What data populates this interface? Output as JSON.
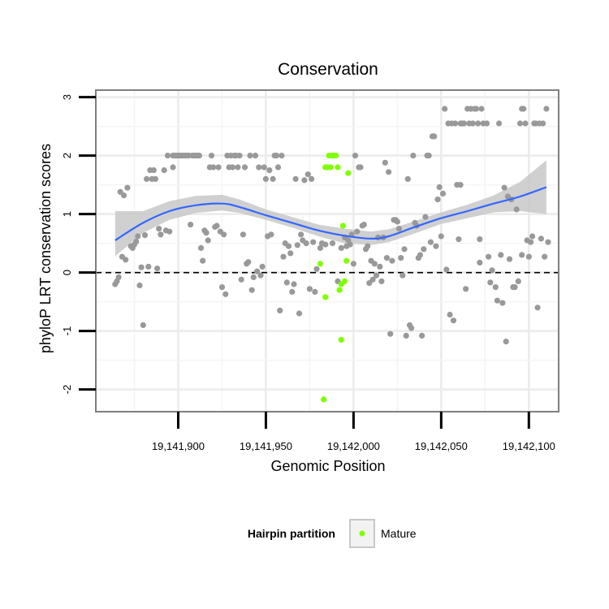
{
  "chart_data": {
    "type": "scatter",
    "title": "Conservation",
    "xlabel": "Genomic Position",
    "ylabel": "phyloP LRT conservation scores",
    "xlim": [
      19141853,
      19142117
    ],
    "ylim": [
      -2.38,
      3.12
    ],
    "x_ticks": [
      19141900,
      19141950,
      19142000,
      19142050,
      19142100
    ],
    "x_tick_labels": [
      "19,141,900",
      "19,141,950",
      "19,142,000",
      "19,142,050",
      "19,142,100"
    ],
    "y_ticks": [
      -2,
      -1,
      0,
      1,
      2,
      3
    ],
    "y_tick_labels": [
      "-2",
      "-1",
      "0",
      "1",
      "2",
      "3"
    ],
    "reference_line": {
      "y": 0,
      "style": "dashed"
    },
    "colors": {
      "background_points": "#999999",
      "mature_points": "#7fff00",
      "smooth_line": "#3366ff",
      "ribbon": "#c8c8c8",
      "grid": "#ebebeb"
    },
    "series": [
      {
        "name": "background",
        "points": [
          [
            19141864,
            -0.2
          ],
          [
            19141865,
            -0.15
          ],
          [
            19141866,
            -0.08
          ],
          [
            19141867,
            1.38
          ],
          [
            19141868,
            0.27
          ],
          [
            19141869,
            1.32
          ],
          [
            19141870,
            0.22
          ],
          [
            19141871,
            1.45
          ],
          [
            19141873,
            0.45
          ],
          [
            19141874,
            0.42
          ],
          [
            19141875,
            0.48
          ],
          [
            19141876,
            0.53
          ],
          [
            19141877,
            0.62
          ],
          [
            19141878,
            -0.22
          ],
          [
            19141879,
            0.09
          ],
          [
            19141880,
            -0.9
          ],
          [
            19141881,
            0.64
          ],
          [
            19141882,
            1.6
          ],
          [
            19141883,
            0.1
          ],
          [
            19141884,
            1.75
          ],
          [
            19141885,
            1.6
          ],
          [
            19141886,
            1.75
          ],
          [
            19141887,
            1.6
          ],
          [
            19141888,
            0.07
          ],
          [
            19141889,
            0.75
          ],
          [
            19141890,
            0.65
          ],
          [
            19141892,
            1.75
          ],
          [
            19141893,
            0.72
          ],
          [
            19141894,
            2.0
          ],
          [
            19141895,
            0.7
          ],
          [
            19141897,
            1.8
          ],
          [
            19141897,
            2.0
          ],
          [
            19141898,
            2.0
          ],
          [
            19141899,
            2.0
          ],
          [
            19141900,
            2.0
          ],
          [
            19141901,
            2.0
          ],
          [
            19141902,
            2.0
          ],
          [
            19141903,
            2.0
          ],
          [
            19141904,
            2.0
          ],
          [
            19141905,
            2.0
          ],
          [
            19141906,
            2.0
          ],
          [
            19141907,
            0.82
          ],
          [
            19141908,
            2.0
          ],
          [
            19141909,
            2.0
          ],
          [
            19141910,
            2.0
          ],
          [
            19141911,
            2.0
          ],
          [
            19141912,
            2.0
          ],
          [
            19141913,
            0.42
          ],
          [
            19141914,
            0.2
          ],
          [
            19141915,
            0.72
          ],
          [
            19141916,
            0.68
          ],
          [
            19141917,
            0.55
          ],
          [
            19141918,
            1.8
          ],
          [
            19141919,
            2.0
          ],
          [
            19141920,
            1.8
          ],
          [
            19141921,
            0.78
          ],
          [
            19141922,
            0.8
          ],
          [
            19141923,
            1.8
          ],
          [
            19141924,
            0.7
          ],
          [
            19141925,
            -0.25
          ],
          [
            19141926,
            0.65
          ],
          [
            19141927,
            -0.37
          ],
          [
            19141928,
            2.0
          ],
          [
            19141929,
            1.8
          ],
          [
            19141930,
            2.0
          ],
          [
            19141931,
            1.8
          ],
          [
            19141932,
            2.0
          ],
          [
            19141933,
            2.0
          ],
          [
            19141934,
            1.8
          ],
          [
            19141935,
            2.0
          ],
          [
            19141936,
            -0.12
          ],
          [
            19141937,
            0.65
          ],
          [
            19141938,
            1.8
          ],
          [
            19141939,
            0.15
          ],
          [
            19141940,
            0.18
          ],
          [
            19141941,
            2.0
          ],
          [
            19141942,
            -0.3
          ],
          [
            19141943,
            -0.08
          ],
          [
            19141944,
            2.0
          ],
          [
            19141945,
            0.02
          ],
          [
            19141946,
            1.8
          ],
          [
            19141947,
            -0.05
          ],
          [
            19141948,
            0.1
          ],
          [
            19141949,
            1.8
          ],
          [
            19141950,
            1.6
          ],
          [
            19141951,
            0.62
          ],
          [
            19141952,
            1.75
          ],
          [
            19141953,
            0.65
          ],
          [
            19141954,
            1.6
          ],
          [
            19141955,
            2.0
          ],
          [
            19141956,
            2.0
          ],
          [
            19141957,
            1.8
          ],
          [
            19141958,
            -0.65
          ],
          [
            19141959,
            2.0
          ],
          [
            19141960,
            0.27
          ],
          [
            19141961,
            0.5
          ],
          [
            19141962,
            -0.17
          ],
          [
            19141963,
            0.45
          ],
          [
            19141964,
            0.33
          ],
          [
            19141965,
            -0.33
          ],
          [
            19141966,
            -0.2
          ],
          [
            19141967,
            1.6
          ],
          [
            19141968,
            0.47
          ],
          [
            19141969,
            -0.7
          ],
          [
            19141970,
            0.65
          ],
          [
            19141971,
            0.55
          ],
          [
            19141972,
            1.58
          ],
          [
            19141973,
            0.5
          ],
          [
            19141974,
            1.68
          ],
          [
            19141975,
            -0.28
          ],
          [
            19141976,
            1.6
          ],
          [
            19141977,
            0.52
          ],
          [
            19141978,
            -0.33
          ],
          [
            19141979,
            0.06
          ],
          [
            19141981,
            0.42
          ],
          [
            19141982,
            0.5
          ],
          [
            19141984,
            0.48
          ],
          [
            19141988,
            0.5
          ],
          [
            19141991,
            -0.15
          ],
          [
            19141993,
            0.42
          ],
          [
            19141995,
            0.6
          ],
          [
            19141996,
            0.45
          ],
          [
            19141997,
            0.55
          ],
          [
            19141998,
            0.48
          ],
          [
            19141999,
            0.65
          ],
          [
            19142000,
            0.15
          ],
          [
            19142001,
            2.0
          ],
          [
            19142002,
            0.7
          ],
          [
            19142003,
            1.8
          ],
          [
            19142004,
            1.8
          ],
          [
            19142005,
            0.8
          ],
          [
            19142006,
            0.82
          ],
          [
            19142007,
            0.4
          ],
          [
            19142008,
            0.45
          ],
          [
            19142009,
            -0.18
          ],
          [
            19142010,
            0.2
          ],
          [
            19142011,
            -0.12
          ],
          [
            19142012,
            0.15
          ],
          [
            19142013,
            -0.05
          ],
          [
            19142014,
            0.6
          ],
          [
            19142015,
            0.1
          ],
          [
            19142016,
            -0.15
          ],
          [
            19142017,
            0.6
          ],
          [
            19142018,
            1.88
          ],
          [
            19142019,
            0.25
          ],
          [
            19142020,
            1.72
          ],
          [
            19142021,
            -1.05
          ],
          [
            19142022,
            0.2
          ],
          [
            19142023,
            0.9
          ],
          [
            19142024,
            0.9
          ],
          [
            19142025,
            0.87
          ],
          [
            19142026,
            0.75
          ],
          [
            19142027,
            0.25
          ],
          [
            19142028,
            -0.05
          ],
          [
            19142029,
            0.4
          ],
          [
            19142030,
            -1.08
          ],
          [
            19142031,
            1.6
          ],
          [
            19142032,
            -0.9
          ],
          [
            19142033,
            -0.95
          ],
          [
            19142034,
            2.0
          ],
          [
            19142035,
            0.85
          ],
          [
            19142036,
            0.8
          ],
          [
            19142037,
            0.25
          ],
          [
            19142038,
            0.3
          ],
          [
            19142039,
            -1.08
          ],
          [
            19142040,
            0.4
          ],
          [
            19142041,
            0.95
          ],
          [
            19142042,
            2.0
          ],
          [
            19142043,
            2.0
          ],
          [
            19142044,
            0.52
          ],
          [
            19142045,
            2.33
          ],
          [
            19142046,
            2.33
          ],
          [
            19142047,
            0.45
          ],
          [
            19142048,
            1.25
          ],
          [
            19142049,
            1.46
          ],
          [
            19142050,
            0.62
          ],
          [
            19142051,
            1.35
          ],
          [
            19142052,
            2.8
          ],
          [
            19142053,
            0.05
          ],
          [
            19142054,
            2.55
          ],
          [
            19142055,
            -0.72
          ],
          [
            19142056,
            2.55
          ],
          [
            19142057,
            -0.82
          ],
          [
            19142058,
            2.55
          ],
          [
            19142059,
            1.5
          ],
          [
            19142060,
            0.57
          ],
          [
            19142061,
            2.55
          ],
          [
            19142062,
            2.55
          ],
          [
            19142063,
            2.55
          ],
          [
            19142064,
            -0.28
          ],
          [
            19142065,
            2.8
          ],
          [
            19142066,
            2.55
          ],
          [
            19142067,
            2.8
          ],
          [
            19142068,
            2.55
          ],
          [
            19142069,
            2.8
          ],
          [
            19142070,
            2.8
          ],
          [
            19142071,
            2.55
          ],
          [
            19142072,
            0.17
          ],
          [
            19142073,
            2.8
          ],
          [
            19142074,
            2.55
          ],
          [
            19142076,
            2.55
          ],
          [
            19142077,
            0.27
          ],
          [
            19142078,
            -0.17
          ],
          [
            19142079,
            0.04
          ],
          [
            19142081,
            -0.25
          ],
          [
            19142082,
            -0.48
          ],
          [
            19142083,
            2.55
          ],
          [
            19142084,
            0.3
          ],
          [
            19142085,
            -0.52
          ],
          [
            19142086,
            1.45
          ],
          [
            19142087,
            -1.18
          ],
          [
            19142088,
            1.3
          ],
          [
            19142089,
            0.23
          ],
          [
            19142090,
            1.25
          ],
          [
            19142091,
            -0.25
          ],
          [
            19142092,
            -0.25
          ],
          [
            19142093,
            1.08
          ],
          [
            19142094,
            -0.15
          ],
          [
            19142095,
            2.55
          ],
          [
            19142096,
            2.8
          ],
          [
            19142097,
            2.8
          ],
          [
            19142098,
            2.55
          ],
          [
            19142099,
            0.55
          ],
          [
            19142100,
            0.27
          ],
          [
            19142101,
            0.52
          ],
          [
            19142102,
            0.62
          ],
          [
            19142103,
            2.55
          ],
          [
            19142104,
            2.55
          ],
          [
            19142105,
            -0.6
          ],
          [
            19142106,
            2.55
          ],
          [
            19142107,
            0.58
          ],
          [
            19142108,
            2.55
          ],
          [
            19142109,
            0.27
          ],
          [
            19142110,
            2.8
          ],
          [
            19142111,
            0.52
          ],
          [
            19142096,
            0.3
          ],
          [
            19142072,
            0.57
          ],
          [
            19142061,
            1.5
          ]
        ]
      },
      {
        "name": "Mature",
        "points": [
          [
            19141981,
            0.15
          ],
          [
            19141984,
            1.8
          ],
          [
            19141985,
            1.8
          ],
          [
            19141986,
            2.0
          ],
          [
            19141987,
            1.8
          ],
          [
            19141988,
            2.0
          ],
          [
            19141989,
            2.0
          ],
          [
            19141990,
            2.0
          ],
          [
            19141991,
            1.8
          ],
          [
            19141992,
            -0.3
          ],
          [
            19141993,
            -0.2
          ],
          [
            19141994,
            0.8
          ],
          [
            19141995,
            -0.15
          ],
          [
            19141996,
            0.2
          ],
          [
            19141997,
            1.7
          ],
          [
            19141993,
            -1.15
          ],
          [
            19141984,
            -0.42
          ],
          [
            19141983,
            -2.17
          ]
        ]
      }
    ],
    "smooth": {
      "x": [
        19141864,
        19141880,
        19141895,
        19141910,
        19141925,
        19141935,
        19141950,
        19141965,
        19141980,
        19141995,
        19142010,
        19142020,
        19142035,
        19142050,
        19142065,
        19142080,
        19142095,
        19142110
      ],
      "y": [
        0.55,
        0.85,
        1.05,
        1.15,
        1.18,
        1.12,
        0.98,
        0.85,
        0.72,
        0.63,
        0.58,
        0.62,
        0.78,
        0.93,
        1.05,
        1.18,
        1.3,
        1.46
      ],
      "ymin": [
        0.28,
        0.68,
        0.9,
        1.02,
        1.06,
        1.02,
        0.9,
        0.77,
        0.62,
        0.5,
        0.47,
        0.52,
        0.67,
        0.83,
        0.93,
        1.03,
        1.05,
        1.0
      ],
      "ymax": [
        1.05,
        1.05,
        1.22,
        1.31,
        1.33,
        1.25,
        1.08,
        0.95,
        0.82,
        0.75,
        0.7,
        0.74,
        0.88,
        1.03,
        1.16,
        1.32,
        1.55,
        1.92
      ]
    },
    "legend": {
      "title": "Hairpin partition",
      "entries": [
        {
          "label": "Mature",
          "color": "#7fff00"
        }
      ],
      "placement": "bottom"
    }
  }
}
